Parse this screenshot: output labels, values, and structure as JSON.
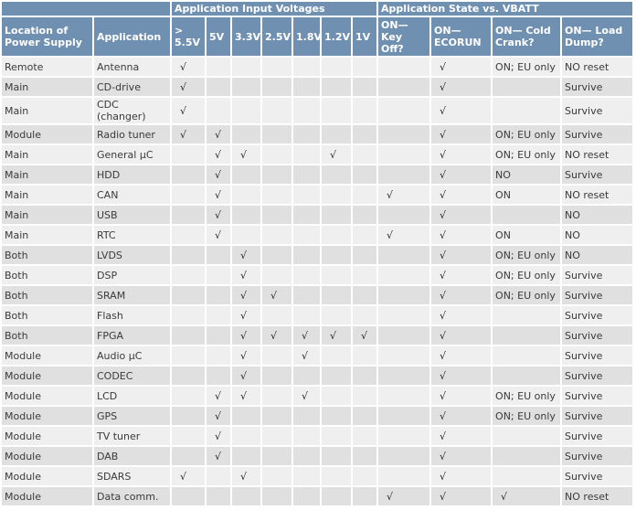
{
  "header": {
    "group_input_voltages": "Application Input Voltages",
    "group_app_state": "Application State vs. VBATT",
    "columns": [
      "Location of Power Supply",
      "Application",
      "> 5.5V",
      "5V",
      "3.3V",
      "2.5V",
      "1.8V",
      "1.2V",
      "1V",
      "ON— Key Off?",
      "ON— ECORUN",
      "ON— Cold Crank?",
      "ON— Load Dump?"
    ]
  },
  "rows": [
    [
      "Remote",
      "Antenna",
      "√",
      "",
      "",
      "",
      "",
      "",
      "",
      "",
      "√",
      "ON; EU only",
      "NO reset"
    ],
    [
      "Main",
      "CD-drive",
      "√",
      "",
      "",
      "",
      "",
      "",
      "",
      "",
      "√",
      "",
      "Survive"
    ],
    [
      "Main",
      "CDC (changer)",
      "√",
      "",
      "",
      "",
      "",
      "",
      "",
      "",
      "√",
      "",
      "Survive"
    ],
    [
      "Module",
      "Radio tuner",
      "√",
      "√",
      "",
      "",
      "",
      "",
      "",
      "",
      "√",
      "ON; EU only",
      "Survive"
    ],
    [
      "Main",
      "General µC",
      "",
      "√",
      "√",
      "",
      "",
      "√",
      "",
      "",
      "√",
      "ON; EU only",
      "NO reset"
    ],
    [
      "Main",
      "HDD",
      "",
      "√",
      "",
      "",
      "",
      "",
      "",
      "",
      "√",
      "NO",
      "Survive"
    ],
    [
      "Main",
      "CAN",
      "",
      "√",
      "",
      "",
      "",
      "",
      "",
      "√",
      "√",
      "ON",
      "NO reset"
    ],
    [
      "Main",
      "USB",
      "",
      "√",
      "",
      "",
      "",
      "",
      "",
      "",
      "√",
      "",
      "NO"
    ],
    [
      "Main",
      "RTC",
      "",
      "√",
      "",
      "",
      "",
      "",
      "",
      "√",
      "√",
      "ON",
      "NO"
    ],
    [
      "Both",
      "LVDS",
      "",
      "",
      "√",
      "",
      "",
      "",
      "",
      "",
      "√",
      "ON; EU only",
      "NO"
    ],
    [
      "Both",
      "DSP",
      "",
      "",
      "√",
      "",
      "",
      "",
      "",
      "",
      "√",
      "ON; EU only",
      "Survive"
    ],
    [
      "Both",
      "SRAM",
      "",
      "",
      "√",
      "√",
      "",
      "",
      "",
      "",
      "√",
      "ON; EU only",
      "Survive"
    ],
    [
      "Both",
      "Flash",
      "",
      "",
      "√",
      "",
      "",
      "",
      "",
      "",
      "√",
      "",
      "Survive"
    ],
    [
      "Both",
      "FPGA",
      "",
      "",
      "√",
      "√",
      "√",
      "√",
      "√",
      "",
      "√",
      "",
      "Survive"
    ],
    [
      "Module",
      "Audio µC",
      "",
      "",
      "√",
      "",
      "√",
      "",
      "",
      "",
      "√",
      "",
      "Survive"
    ],
    [
      "Module",
      "CODEC",
      "",
      "",
      "√",
      "",
      "",
      "",
      "",
      "",
      "√",
      "",
      "Survive"
    ],
    [
      "Module",
      "LCD",
      "",
      "√",
      "√",
      "",
      "√",
      "",
      "",
      "",
      "√",
      "ON; EU only",
      "Survive"
    ],
    [
      "Module",
      "GPS",
      "",
      "√",
      "",
      "",
      "",
      "",
      "",
      "",
      "√",
      "ON; EU only",
      "Survive"
    ],
    [
      "Module",
      "TV tuner",
      "",
      "√",
      "",
      "",
      "",
      "",
      "",
      "",
      "√",
      "",
      "Survive"
    ],
    [
      "Module",
      "DAB",
      "",
      "√",
      "",
      "",
      "",
      "",
      "",
      "",
      "√",
      "",
      "Survive"
    ],
    [
      "Module",
      "SDARS",
      "√",
      "",
      "√",
      "",
      "",
      "",
      "",
      "",
      "√",
      "",
      "Survive"
    ],
    [
      "Module",
      "Data comm.",
      "",
      "",
      "",
      "",
      "",
      "",
      "",
      "√",
      "√",
      "√",
      "NO reset"
    ]
  ]
}
